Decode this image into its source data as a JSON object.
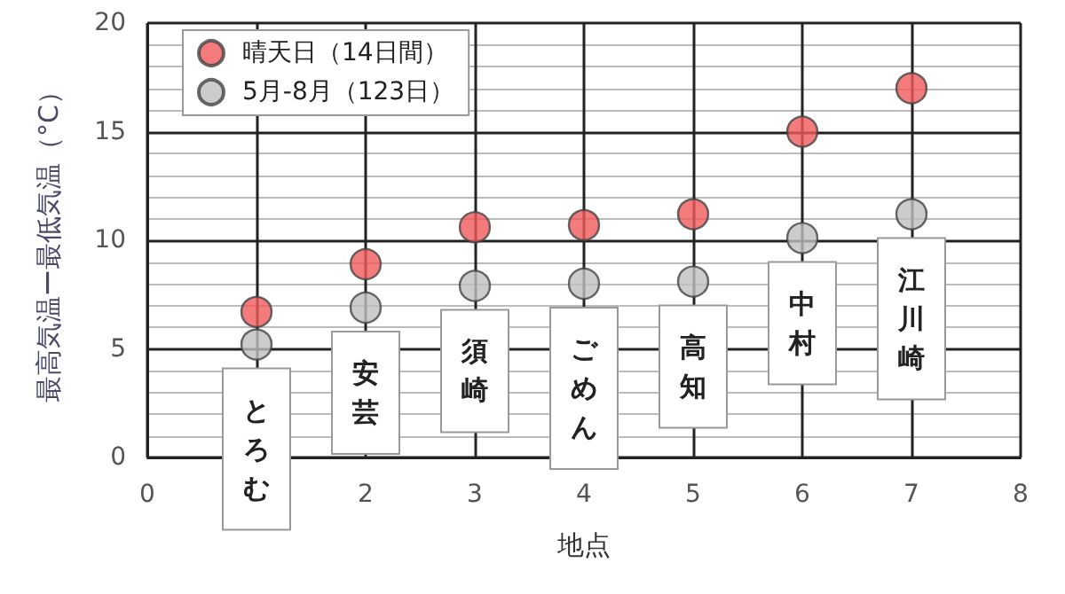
{
  "chart_data": {
    "type": "scatter",
    "xlabel": "地点",
    "ylabel": "最高気温ー最低気温（°C）",
    "x": [
      1,
      2,
      3,
      4,
      5,
      6,
      7
    ],
    "series": [
      {
        "name": "晴天日（14日間）",
        "color": "#f05a5a",
        "values": [
          6.7,
          8.9,
          10.6,
          10.7,
          11.2,
          15.0,
          17.0
        ]
      },
      {
        "name": "5月-8月（123日）",
        "color": "#bfbfbf",
        "values": [
          5.2,
          6.9,
          7.9,
          8.0,
          8.1,
          10.1,
          11.2
        ]
      }
    ],
    "xlim": [
      0,
      8
    ],
    "xticks": [
      0,
      {
        "value": 1,
        "label": null
      },
      2,
      3,
      4,
      5,
      6,
      7,
      8
    ],
    "ylim": [
      0,
      20
    ],
    "yticks": [
      0,
      5,
      10,
      15,
      20
    ],
    "annotations": [
      "とろむ",
      "安芸",
      "須崎",
      "ごめん",
      "高知",
      "中村",
      "江川崎"
    ],
    "grid": true,
    "legend": "top left",
    "marker": "circle"
  }
}
